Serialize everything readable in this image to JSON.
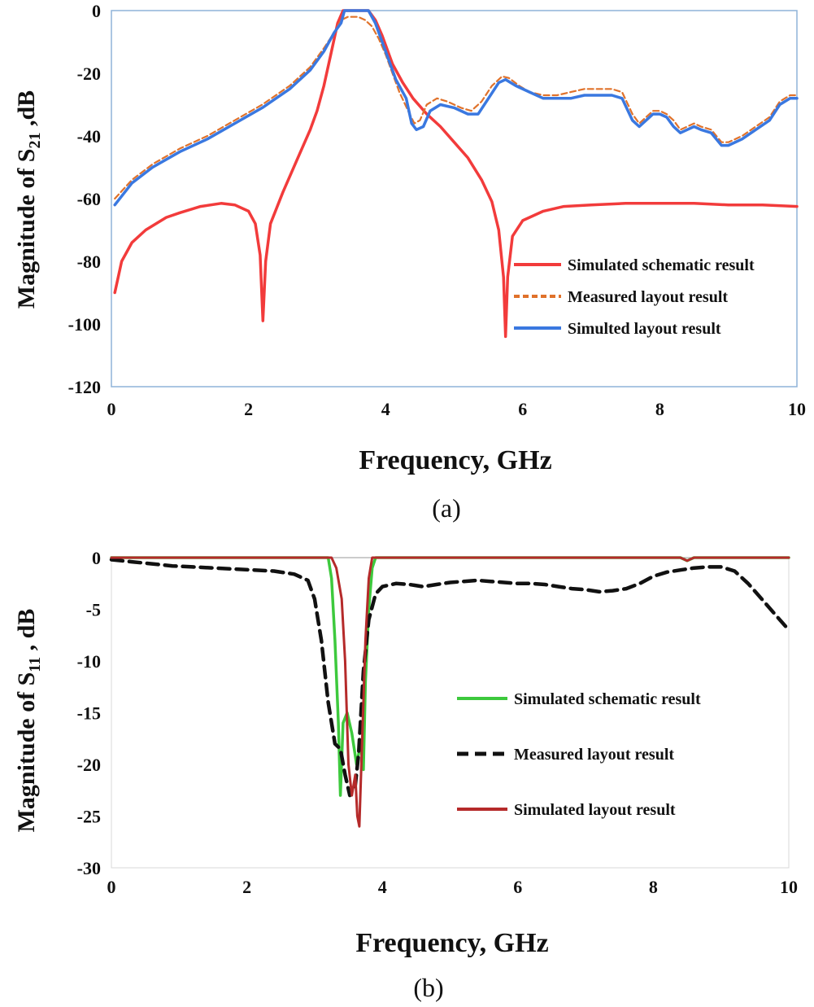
{
  "chart_data": [
    {
      "type": "line",
      "panel_label": "(a)",
      "xlabel": "Frequency, GHz",
      "ylabel_main": "Magnitude of S",
      "ylabel_sub": "21",
      "ylabel_unit": " ,dB",
      "xlim": [
        0,
        10
      ],
      "ylim": [
        -120,
        0
      ],
      "xticks": [
        0,
        2,
        4,
        6,
        8,
        10
      ],
      "yticks": [
        0,
        -20,
        -40,
        -60,
        -80,
        -100,
        -120
      ],
      "legend_position": "right",
      "series": [
        {
          "name": "Simulated schematic result",
          "color": "#f23b3b",
          "style": "solid",
          "points": [
            [
              0.05,
              -90
            ],
            [
              0.15,
              -80
            ],
            [
              0.3,
              -74
            ],
            [
              0.5,
              -70
            ],
            [
              0.8,
              -66
            ],
            [
              1.0,
              -64.5
            ],
            [
              1.3,
              -62.5
            ],
            [
              1.6,
              -61.5
            ],
            [
              1.8,
              -62
            ],
            [
              2.0,
              -64
            ],
            [
              2.1,
              -68
            ],
            [
              2.17,
              -78
            ],
            [
              2.21,
              -99
            ],
            [
              2.25,
              -80
            ],
            [
              2.32,
              -68
            ],
            [
              2.5,
              -58
            ],
            [
              2.7,
              -48
            ],
            [
              2.9,
              -38
            ],
            [
              3.0,
              -32
            ],
            [
              3.1,
              -24
            ],
            [
              3.2,
              -14
            ],
            [
              3.3,
              -4
            ],
            [
              3.38,
              0
            ],
            [
              3.75,
              0
            ],
            [
              3.85,
              -3
            ],
            [
              3.95,
              -8
            ],
            [
              4.1,
              -17
            ],
            [
              4.25,
              -23
            ],
            [
              4.4,
              -28
            ],
            [
              4.6,
              -33
            ],
            [
              4.8,
              -37
            ],
            [
              5.0,
              -42
            ],
            [
              5.2,
              -47
            ],
            [
              5.4,
              -54
            ],
            [
              5.55,
              -61
            ],
            [
              5.65,
              -70
            ],
            [
              5.72,
              -85
            ],
            [
              5.75,
              -104
            ],
            [
              5.78,
              -85
            ],
            [
              5.85,
              -72
            ],
            [
              6.0,
              -67
            ],
            [
              6.3,
              -64
            ],
            [
              6.6,
              -62.5
            ],
            [
              7.0,
              -62
            ],
            [
              7.5,
              -61.5
            ],
            [
              8.0,
              -61.5
            ],
            [
              8.5,
              -61.5
            ],
            [
              9.0,
              -62
            ],
            [
              9.5,
              -62
            ],
            [
              10.0,
              -62.5
            ]
          ]
        },
        {
          "name": "Measured layout result",
          "color": "#e0722b",
          "style": "dashed",
          "points": [
            [
              0.05,
              -60
            ],
            [
              0.3,
              -54
            ],
            [
              0.6,
              -49
            ],
            [
              1.0,
              -44
            ],
            [
              1.4,
              -40
            ],
            [
              1.8,
              -35
            ],
            [
              2.2,
              -30
            ],
            [
              2.6,
              -24
            ],
            [
              2.9,
              -18
            ],
            [
              3.1,
              -12
            ],
            [
              3.25,
              -7
            ],
            [
              3.35,
              -3
            ],
            [
              3.45,
              -2
            ],
            [
              3.6,
              -2
            ],
            [
              3.7,
              -3
            ],
            [
              3.8,
              -5
            ],
            [
              3.9,
              -9
            ],
            [
              4.0,
              -14
            ],
            [
              4.1,
              -20
            ],
            [
              4.2,
              -26
            ],
            [
              4.35,
              -33
            ],
            [
              4.42,
              -36
            ],
            [
              4.5,
              -35
            ],
            [
              4.6,
              -30
            ],
            [
              4.75,
              -28
            ],
            [
              4.9,
              -29
            ],
            [
              5.1,
              -31
            ],
            [
              5.25,
              -32
            ],
            [
              5.4,
              -29
            ],
            [
              5.55,
              -24
            ],
            [
              5.7,
              -21
            ],
            [
              5.8,
              -21.5
            ],
            [
              5.95,
              -24
            ],
            [
              6.1,
              -26
            ],
            [
              6.3,
              -27
            ],
            [
              6.5,
              -27
            ],
            [
              6.7,
              -26
            ],
            [
              6.9,
              -25
            ],
            [
              7.1,
              -25
            ],
            [
              7.3,
              -25
            ],
            [
              7.45,
              -26
            ],
            [
              7.6,
              -33
            ],
            [
              7.7,
              -36
            ],
            [
              7.8,
              -34
            ],
            [
              7.9,
              -32
            ],
            [
              8.0,
              -32
            ],
            [
              8.1,
              -33
            ],
            [
              8.2,
              -35
            ],
            [
              8.3,
              -38
            ],
            [
              8.4,
              -37
            ],
            [
              8.5,
              -36
            ],
            [
              8.6,
              -37
            ],
            [
              8.75,
              -38
            ],
            [
              8.9,
              -42
            ],
            [
              9.0,
              -42
            ],
            [
              9.2,
              -40
            ],
            [
              9.4,
              -37
            ],
            [
              9.6,
              -34
            ],
            [
              9.75,
              -29
            ],
            [
              9.9,
              -27
            ],
            [
              10.0,
              -27
            ]
          ]
        },
        {
          "name": "Simulted layout result",
          "color": "#3a78e0",
          "style": "solid",
          "points": [
            [
              0.05,
              -62
            ],
            [
              0.3,
              -55
            ],
            [
              0.6,
              -50
            ],
            [
              1.0,
              -45
            ],
            [
              1.4,
              -41
            ],
            [
              1.8,
              -36
            ],
            [
              2.2,
              -31
            ],
            [
              2.6,
              -25
            ],
            [
              2.9,
              -19
            ],
            [
              3.1,
              -13
            ],
            [
              3.25,
              -7
            ],
            [
              3.35,
              -4
            ],
            [
              3.4,
              0
            ],
            [
              3.75,
              0
            ],
            [
              3.85,
              -4
            ],
            [
              3.95,
              -10
            ],
            [
              4.05,
              -16
            ],
            [
              4.15,
              -22
            ],
            [
              4.3,
              -28
            ],
            [
              4.38,
              -36
            ],
            [
              4.45,
              -38
            ],
            [
              4.55,
              -37
            ],
            [
              4.65,
              -32
            ],
            [
              4.8,
              -30
            ],
            [
              5.0,
              -31
            ],
            [
              5.2,
              -33
            ],
            [
              5.35,
              -33
            ],
            [
              5.5,
              -28
            ],
            [
              5.65,
              -23
            ],
            [
              5.75,
              -22
            ],
            [
              5.9,
              -24
            ],
            [
              6.1,
              -26
            ],
            [
              6.3,
              -28
            ],
            [
              6.5,
              -28
            ],
            [
              6.7,
              -28
            ],
            [
              6.9,
              -27
            ],
            [
              7.1,
              -27
            ],
            [
              7.3,
              -27
            ],
            [
              7.45,
              -28
            ],
            [
              7.6,
              -35
            ],
            [
              7.7,
              -37
            ],
            [
              7.8,
              -35
            ],
            [
              7.9,
              -33
            ],
            [
              8.0,
              -33
            ],
            [
              8.1,
              -34
            ],
            [
              8.2,
              -37
            ],
            [
              8.3,
              -39
            ],
            [
              8.4,
              -38
            ],
            [
              8.5,
              -37
            ],
            [
              8.6,
              -38
            ],
            [
              8.75,
              -39
            ],
            [
              8.9,
              -43
            ],
            [
              9.0,
              -43
            ],
            [
              9.2,
              -41
            ],
            [
              9.4,
              -38
            ],
            [
              9.6,
              -35
            ],
            [
              9.75,
              -30
            ],
            [
              9.9,
              -28
            ],
            [
              10.0,
              -28
            ]
          ]
        }
      ]
    },
    {
      "type": "line",
      "panel_label": "(b)",
      "xlabel": "Frequency, GHz",
      "ylabel_main": "Magnitude of  S",
      "ylabel_sub": "11",
      "ylabel_unit": " , dB",
      "xlim": [
        0,
        10
      ],
      "ylim": [
        -30,
        0
      ],
      "xticks": [
        0,
        2,
        4,
        6,
        8,
        10
      ],
      "yticks": [
        0,
        -5,
        -10,
        -15,
        -20,
        -25,
        -30
      ],
      "legend_position": "center-right",
      "series": [
        {
          "name": "Simulated schematic result",
          "color": "#3dc93d",
          "style": "solid",
          "points": [
            [
              0.0,
              0
            ],
            [
              3.2,
              0
            ],
            [
              3.25,
              -2
            ],
            [
              3.3,
              -8
            ],
            [
              3.35,
              -16
            ],
            [
              3.38,
              -23
            ],
            [
              3.42,
              -16
            ],
            [
              3.48,
              -15
            ],
            [
              3.55,
              -17
            ],
            [
              3.62,
              -20
            ],
            [
              3.68,
              -18
            ],
            [
              3.72,
              -20.5
            ],
            [
              3.75,
              -12
            ],
            [
              3.8,
              -5
            ],
            [
              3.85,
              -1
            ],
            [
              3.9,
              0
            ],
            [
              8.4,
              0
            ],
            [
              8.5,
              -0.3
            ],
            [
              8.6,
              0
            ],
            [
              10.0,
              0
            ]
          ]
        },
        {
          "name": "Measured layout result",
          "color": "#111111",
          "style": "dashed",
          "points": [
            [
              0.0,
              -0.2
            ],
            [
              0.3,
              -0.4
            ],
            [
              0.6,
              -0.6
            ],
            [
              0.9,
              -0.8
            ],
            [
              1.2,
              -0.9
            ],
            [
              1.5,
              -1.0
            ],
            [
              1.8,
              -1.1
            ],
            [
              2.1,
              -1.2
            ],
            [
              2.4,
              -1.3
            ],
            [
              2.7,
              -1.6
            ],
            [
              2.9,
              -2.2
            ],
            [
              3.0,
              -4
            ],
            [
              3.1,
              -8
            ],
            [
              3.2,
              -14
            ],
            [
              3.3,
              -18
            ],
            [
              3.38,
              -18.5
            ],
            [
              3.45,
              -21
            ],
            [
              3.52,
              -23
            ],
            [
              3.6,
              -22
            ],
            [
              3.65,
              -19
            ],
            [
              3.72,
              -11
            ],
            [
              3.8,
              -6
            ],
            [
              3.9,
              -3.5
            ],
            [
              4.0,
              -2.8
            ],
            [
              4.2,
              -2.5
            ],
            [
              4.4,
              -2.6
            ],
            [
              4.6,
              -2.8
            ],
            [
              4.8,
              -2.6
            ],
            [
              5.0,
              -2.4
            ],
            [
              5.2,
              -2.3
            ],
            [
              5.4,
              -2.2
            ],
            [
              5.6,
              -2.3
            ],
            [
              5.8,
              -2.4
            ],
            [
              6.0,
              -2.5
            ],
            [
              6.2,
              -2.5
            ],
            [
              6.4,
              -2.6
            ],
            [
              6.6,
              -2.8
            ],
            [
              6.8,
              -3.0
            ],
            [
              7.0,
              -3.1
            ],
            [
              7.2,
              -3.3
            ],
            [
              7.4,
              -3.2
            ],
            [
              7.6,
              -3.0
            ],
            [
              7.8,
              -2.5
            ],
            [
              8.0,
              -1.8
            ],
            [
              8.2,
              -1.4
            ],
            [
              8.4,
              -1.2
            ],
            [
              8.6,
              -1.0
            ],
            [
              8.8,
              -0.9
            ],
            [
              9.0,
              -0.9
            ],
            [
              9.2,
              -1.3
            ],
            [
              9.4,
              -2.5
            ],
            [
              9.6,
              -4.0
            ],
            [
              9.8,
              -5.5
            ],
            [
              10.0,
              -7.0
            ]
          ]
        },
        {
          "name": "Simulated layout result",
          "color": "#b52a2a",
          "style": "solid",
          "points": [
            [
              0.0,
              0
            ],
            [
              3.25,
              0
            ],
            [
              3.32,
              -1
            ],
            [
              3.4,
              -4
            ],
            [
              3.45,
              -10
            ],
            [
              3.5,
              -20
            ],
            [
              3.55,
              -23
            ],
            [
              3.6,
              -21
            ],
            [
              3.63,
              -25
            ],
            [
              3.66,
              -26
            ],
            [
              3.7,
              -18
            ],
            [
              3.75,
              -8
            ],
            [
              3.8,
              -2
            ],
            [
              3.85,
              0
            ],
            [
              8.4,
              0
            ],
            [
              8.5,
              -0.3
            ],
            [
              8.6,
              0
            ],
            [
              10.0,
              0
            ]
          ]
        }
      ]
    }
  ]
}
